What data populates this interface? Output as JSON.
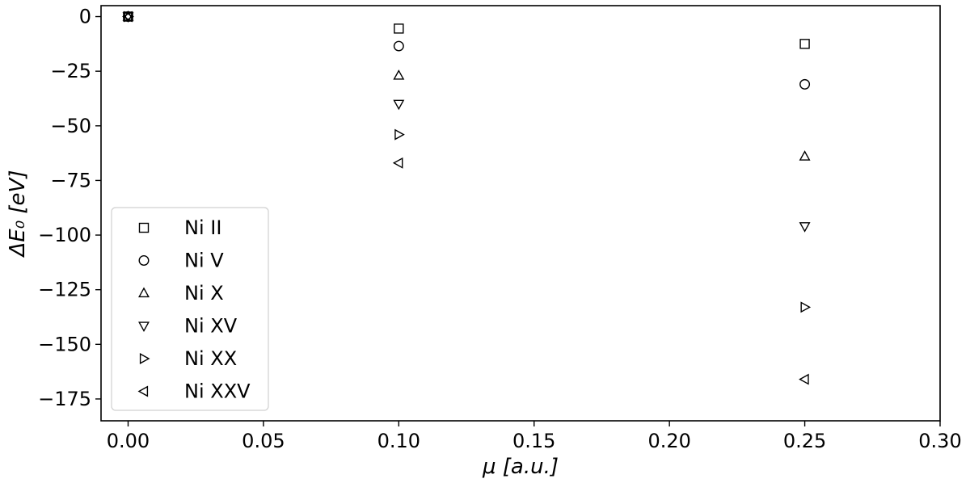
{
  "chart_data": {
    "type": "scatter",
    "title": "",
    "xlabel": "μ [a.u.]",
    "ylabel": "ΔE₀ [eV]",
    "xlim": [
      -0.01,
      0.3
    ],
    "ylim": [
      -185,
      5
    ],
    "xticks": [
      0.0,
      0.05,
      0.1,
      0.15,
      0.2,
      0.25,
      0.3
    ],
    "xtick_labels": [
      "0.00",
      "0.05",
      "0.10",
      "0.15",
      "0.20",
      "0.25",
      "0.30"
    ],
    "yticks": [
      0,
      -25,
      -50,
      -75,
      -100,
      -125,
      -150,
      -175
    ],
    "ytick_labels": [
      "0",
      "−25",
      "−50",
      "−75",
      "−100",
      "−125",
      "−150",
      "−175"
    ],
    "grid": false,
    "legend_position": "lower-left",
    "series": [
      {
        "name": "Ni II",
        "marker": "square",
        "x": [
          0.0,
          0.1,
          0.25
        ],
        "y": [
          0,
          -5.5,
          -12.5
        ]
      },
      {
        "name": "Ni V",
        "marker": "circle",
        "x": [
          0.0,
          0.1,
          0.25
        ],
        "y": [
          0,
          -13.5,
          -31
        ]
      },
      {
        "name": "Ni X",
        "marker": "triangle-up",
        "x": [
          0.0,
          0.1,
          0.25
        ],
        "y": [
          0,
          -27,
          -64
        ]
      },
      {
        "name": "Ni XV",
        "marker": "triangle-down",
        "x": [
          0.0,
          0.1,
          0.25
        ],
        "y": [
          0,
          -40,
          -96
        ]
      },
      {
        "name": "Ni XX",
        "marker": "triangle-right",
        "x": [
          0.0,
          0.1,
          0.25
        ],
        "y": [
          0,
          -54,
          -133
        ]
      },
      {
        "name": "Ni XXV",
        "marker": "triangle-left",
        "x": [
          0.0,
          0.1,
          0.25
        ],
        "y": [
          0,
          -67,
          -166
        ]
      }
    ]
  }
}
